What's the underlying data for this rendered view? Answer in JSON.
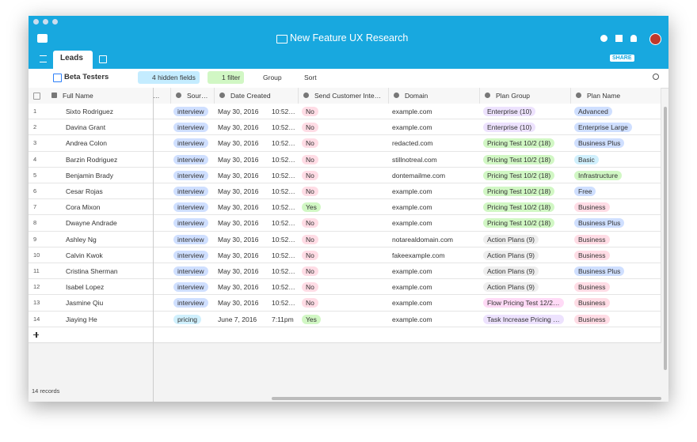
{
  "header": {
    "title": "New Feature UX Research",
    "tab": "Leads",
    "share": "SHARE"
  },
  "toolbar": {
    "view": "Beta Testers",
    "hidden_fields": "4 hidden fields",
    "filter": "1 filter",
    "group": "Group",
    "sort": "Sort"
  },
  "table": {
    "columns": [
      "Full Name",
      "…",
      "Sour…",
      "Date Created",
      "Send Customer Inte…",
      "Domain",
      "Plan Group",
      "Plan Name"
    ],
    "rows": [
      {
        "num": 1,
        "name": "Sixto Rodriguez",
        "source": {
          "text": "interview",
          "color": "#cfdfff"
        },
        "date": "May 30, 2016",
        "time": "10:52…",
        "send": {
          "text": "No",
          "color": "#ffdce5"
        },
        "domain": "example.com",
        "plan_group": {
          "text": "Enterprise (10)",
          "color": "#ede2fe"
        },
        "plan_name": {
          "text": "Advanced",
          "color": "#cfdfff"
        }
      },
      {
        "num": 2,
        "name": "Davina Grant",
        "source": {
          "text": "interview",
          "color": "#cfdfff"
        },
        "date": "May 30, 2016",
        "time": "10:52…",
        "send": {
          "text": "No",
          "color": "#ffdce5"
        },
        "domain": "example.com",
        "plan_group": {
          "text": "Enterprise (10)",
          "color": "#ede2fe"
        },
        "plan_name": {
          "text": "Enterprise Large",
          "color": "#cfdfff"
        }
      },
      {
        "num": 3,
        "name": "Andrea Colon",
        "source": {
          "text": "interview",
          "color": "#cfdfff"
        },
        "date": "May 30, 2016",
        "time": "10:52…",
        "send": {
          "text": "No",
          "color": "#ffdce5"
        },
        "domain": "redacted.com",
        "plan_group": {
          "text": "Pricing Test 10/2 (18)",
          "color": "#d1f7c4"
        },
        "plan_name": {
          "text": "Business Plus",
          "color": "#cfdfff"
        }
      },
      {
        "num": 4,
        "name": "Barzin Rodriguez",
        "source": {
          "text": "interview",
          "color": "#cfdfff"
        },
        "date": "May 30, 2016",
        "time": "10:52…",
        "send": {
          "text": "No",
          "color": "#ffdce5"
        },
        "domain": "stillnotreal.com",
        "plan_group": {
          "text": "Pricing Test 10/2 (18)",
          "color": "#d1f7c4"
        },
        "plan_name": {
          "text": "Basic",
          "color": "#d0f0fd"
        }
      },
      {
        "num": 5,
        "name": "Benjamin Brady",
        "source": {
          "text": "interview",
          "color": "#cfdfff"
        },
        "date": "May 30, 2016",
        "time": "10:52…",
        "send": {
          "text": "No",
          "color": "#ffdce5"
        },
        "domain": "dontemailme.com",
        "plan_group": {
          "text": "Pricing Test 10/2 (18)",
          "color": "#d1f7c4"
        },
        "plan_name": {
          "text": "Infrastructure",
          "color": "#d1f7c4"
        }
      },
      {
        "num": 6,
        "name": "Cesar Rojas",
        "source": {
          "text": "interview",
          "color": "#cfdfff"
        },
        "date": "May 30, 2016",
        "time": "10:52…",
        "send": {
          "text": "No",
          "color": "#ffdce5"
        },
        "domain": "example.com",
        "plan_group": {
          "text": "Pricing Test 10/2 (18)",
          "color": "#d1f7c4"
        },
        "plan_name": {
          "text": "Free",
          "color": "#cfdfff"
        }
      },
      {
        "num": 7,
        "name": "Cora Mixon",
        "source": {
          "text": "interview",
          "color": "#cfdfff"
        },
        "date": "May 30, 2016",
        "time": "10:52…",
        "send": {
          "text": "Yes",
          "color": "#d1f7c4"
        },
        "domain": "example.com",
        "plan_group": {
          "text": "Pricing Test 10/2 (18)",
          "color": "#d1f7c4"
        },
        "plan_name": {
          "text": "Business",
          "color": "#ffdce5"
        }
      },
      {
        "num": 8,
        "name": "Dwayne Andrade",
        "source": {
          "text": "interview",
          "color": "#cfdfff"
        },
        "date": "May 30, 2016",
        "time": "10:52…",
        "send": {
          "text": "No",
          "color": "#ffdce5"
        },
        "domain": "example.com",
        "plan_group": {
          "text": "Pricing Test 10/2 (18)",
          "color": "#d1f7c4"
        },
        "plan_name": {
          "text": "Business Plus",
          "color": "#cfdfff"
        }
      },
      {
        "num": 9,
        "name": "Ashley Ng",
        "source": {
          "text": "interview",
          "color": "#cfdfff"
        },
        "date": "May 30, 2016",
        "time": "10:52…",
        "send": {
          "text": "No",
          "color": "#ffdce5"
        },
        "domain": "notarealdomain.com",
        "plan_group": {
          "text": "Action Plans (9)",
          "color": "#eeeeee"
        },
        "plan_name": {
          "text": "Business",
          "color": "#ffdce5"
        }
      },
      {
        "num": 10,
        "name": "Calvin Kwok",
        "source": {
          "text": "interview",
          "color": "#cfdfff"
        },
        "date": "May 30, 2016",
        "time": "10:52…",
        "send": {
          "text": "No",
          "color": "#ffdce5"
        },
        "domain": "fakeexample.com",
        "plan_group": {
          "text": "Action Plans (9)",
          "color": "#eeeeee"
        },
        "plan_name": {
          "text": "Business",
          "color": "#ffdce5"
        }
      },
      {
        "num": 11,
        "name": "Cristina Sherman",
        "source": {
          "text": "interview",
          "color": "#cfdfff"
        },
        "date": "May 30, 2016",
        "time": "10:52…",
        "send": {
          "text": "No",
          "color": "#ffdce5"
        },
        "domain": "example.com",
        "plan_group": {
          "text": "Action Plans (9)",
          "color": "#eeeeee"
        },
        "plan_name": {
          "text": "Business Plus",
          "color": "#cfdfff"
        }
      },
      {
        "num": 12,
        "name": "Isabel Lopez",
        "source": {
          "text": "interview",
          "color": "#cfdfff"
        },
        "date": "May 30, 2016",
        "time": "10:52…",
        "send": {
          "text": "No",
          "color": "#ffdce5"
        },
        "domain": "example.com",
        "plan_group": {
          "text": "Action Plans (9)",
          "color": "#eeeeee"
        },
        "plan_name": {
          "text": "Business",
          "color": "#ffdce5"
        }
      },
      {
        "num": 13,
        "name": "Jasmine Qiu",
        "source": {
          "text": "interview",
          "color": "#cfdfff"
        },
        "date": "May 30, 2016",
        "time": "10:52…",
        "send": {
          "text": "No",
          "color": "#ffdce5"
        },
        "domain": "example.com",
        "plan_group": {
          "text": "Flow Pricing Test 12/2…",
          "color": "#ffdaf6"
        },
        "plan_name": {
          "text": "Business",
          "color": "#ffdce5"
        }
      },
      {
        "num": 14,
        "name": "Jiaying He",
        "source": {
          "text": "pricing",
          "color": "#d0f0fd"
        },
        "date": "June 7, 2016",
        "time": "7:11pm",
        "send": {
          "text": "Yes",
          "color": "#d1f7c4"
        },
        "domain": "example.com",
        "plan_group": {
          "text": "Task Increase Pricing …",
          "color": "#ede2fe"
        },
        "plan_name": {
          "text": "Business",
          "color": "#ffdce5"
        }
      }
    ]
  },
  "footer": {
    "records": "14 records"
  }
}
